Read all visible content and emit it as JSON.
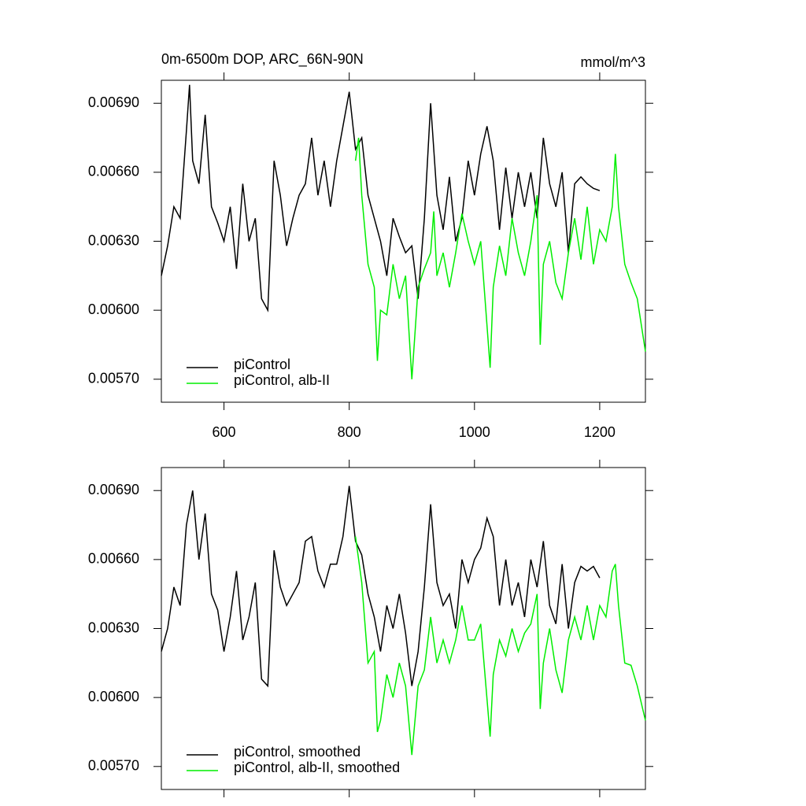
{
  "chart_data": [
    {
      "type": "line",
      "title": "0m-6500m DOP, ARC_66N-90N",
      "units": "mmol/m^3",
      "xlim": [
        500,
        1273
      ],
      "xticks": [
        600,
        800,
        1000,
        1200
      ],
      "xticklabels": true,
      "ylim": [
        0.0056,
        0.007
      ],
      "yticks": [
        {
          "value": 0.0069,
          "label": "0.00690"
        },
        {
          "value": 0.0066,
          "label": "0.00660"
        },
        {
          "value": 0.0063,
          "label": "0.00630"
        },
        {
          "value": 0.006,
          "label": "0.00600"
        },
        {
          "value": 0.0057,
          "label": "0.00570"
        }
      ],
      "legend": "lower left",
      "series": [
        {
          "name": "piControl",
          "color": "#000000",
          "x": [
            500,
            510,
            520,
            530,
            540,
            545,
            550,
            560,
            570,
            580,
            590,
            600,
            610,
            620,
            630,
            640,
            650,
            660,
            670,
            680,
            690,
            700,
            710,
            720,
            730,
            740,
            750,
            760,
            770,
            780,
            790,
            800,
            810,
            820,
            830,
            840,
            850,
            860,
            870,
            880,
            890,
            900,
            910,
            920,
            930,
            940,
            950,
            960,
            970,
            980,
            990,
            1000,
            1010,
            1020,
            1030,
            1040,
            1050,
            1060,
            1070,
            1080,
            1090,
            1100,
            1110,
            1120,
            1130,
            1140,
            1150,
            1160,
            1170,
            1180,
            1190,
            1200
          ],
          "values": [
            0.00615,
            0.00628,
            0.00645,
            0.0064,
            0.00678,
            0.00698,
            0.00665,
            0.00655,
            0.00685,
            0.00645,
            0.00638,
            0.0063,
            0.00645,
            0.00618,
            0.00655,
            0.0063,
            0.0064,
            0.00605,
            0.006,
            0.00665,
            0.0065,
            0.00628,
            0.0064,
            0.0065,
            0.00655,
            0.00675,
            0.0065,
            0.00665,
            0.00645,
            0.00665,
            0.0068,
            0.00695,
            0.0067,
            0.00675,
            0.0065,
            0.0064,
            0.0063,
            0.00615,
            0.0064,
            0.00632,
            0.00625,
            0.00628,
            0.00605,
            0.0064,
            0.0069,
            0.0065,
            0.00635,
            0.00658,
            0.0063,
            0.0064,
            0.00665,
            0.0065,
            0.00668,
            0.0068,
            0.00665,
            0.00635,
            0.00662,
            0.0064,
            0.0066,
            0.00645,
            0.0066,
            0.0064,
            0.00675,
            0.00655,
            0.00645,
            0.0066,
            0.00625,
            0.00655,
            0.00658,
            0.00655,
            0.00653,
            0.00652
          ]
        },
        {
          "name": "piControl, alb-II",
          "color": "#00ee00",
          "x": [
            810,
            815,
            820,
            830,
            840,
            845,
            850,
            860,
            870,
            880,
            890,
            900,
            910,
            920,
            930,
            935,
            940,
            950,
            960,
            970,
            980,
            990,
            1000,
            1010,
            1025,
            1030,
            1040,
            1050,
            1060,
            1070,
            1080,
            1090,
            1100,
            1105,
            1110,
            1120,
            1130,
            1140,
            1150,
            1160,
            1170,
            1180,
            1190,
            1200,
            1210,
            1220,
            1225,
            1230,
            1240,
            1250,
            1260,
            1273
          ],
          "values": [
            0.00665,
            0.00675,
            0.0065,
            0.0062,
            0.0061,
            0.00578,
            0.006,
            0.00598,
            0.0062,
            0.00605,
            0.00615,
            0.0057,
            0.0061,
            0.00618,
            0.00625,
            0.00643,
            0.00615,
            0.00625,
            0.0061,
            0.00625,
            0.00642,
            0.0063,
            0.0062,
            0.0063,
            0.00575,
            0.0061,
            0.00628,
            0.00615,
            0.0064,
            0.00625,
            0.00615,
            0.0063,
            0.0065,
            0.00585,
            0.0062,
            0.0063,
            0.00612,
            0.00605,
            0.00625,
            0.0064,
            0.00622,
            0.00645,
            0.0062,
            0.00635,
            0.0063,
            0.00645,
            0.00668,
            0.00645,
            0.0062,
            0.00612,
            0.00605,
            0.00582
          ]
        }
      ]
    },
    {
      "type": "line",
      "xlim": [
        500,
        1273
      ],
      "xticks": [
        600,
        800,
        1000,
        1200
      ],
      "xticklabels": false,
      "ylim": [
        0.0056,
        0.007
      ],
      "yticks": [
        {
          "value": 0.0069,
          "label": "0.00690"
        },
        {
          "value": 0.0066,
          "label": "0.00660"
        },
        {
          "value": 0.0063,
          "label": "0.00630"
        },
        {
          "value": 0.006,
          "label": "0.00600"
        },
        {
          "value": 0.0057,
          "label": "0.00570"
        }
      ],
      "legend": "lower left",
      "series": [
        {
          "name": "piControl, smoothed",
          "color": "#000000",
          "x": [
            500,
            510,
            520,
            530,
            540,
            550,
            560,
            570,
            580,
            590,
            600,
            610,
            620,
            630,
            640,
            650,
            660,
            670,
            680,
            690,
            700,
            710,
            720,
            730,
            740,
            750,
            760,
            770,
            780,
            790,
            800,
            810,
            820,
            830,
            840,
            850,
            860,
            870,
            880,
            890,
            900,
            910,
            920,
            930,
            940,
            950,
            960,
            970,
            980,
            990,
            1000,
            1010,
            1020,
            1030,
            1040,
            1050,
            1060,
            1070,
            1080,
            1090,
            1100,
            1110,
            1120,
            1130,
            1140,
            1150,
            1160,
            1170,
            1180,
            1190,
            1200
          ],
          "values": [
            0.0062,
            0.0063,
            0.00648,
            0.0064,
            0.00675,
            0.0069,
            0.0066,
            0.0068,
            0.00645,
            0.00638,
            0.0062,
            0.00635,
            0.00655,
            0.00625,
            0.00635,
            0.0065,
            0.00608,
            0.00605,
            0.00664,
            0.00648,
            0.0064,
            0.00645,
            0.0065,
            0.00668,
            0.0067,
            0.00655,
            0.00648,
            0.00658,
            0.00658,
            0.0067,
            0.00692,
            0.00668,
            0.00662,
            0.00645,
            0.00635,
            0.0062,
            0.0064,
            0.0063,
            0.00645,
            0.00628,
            0.00605,
            0.0062,
            0.00648,
            0.00684,
            0.0065,
            0.0064,
            0.00645,
            0.0063,
            0.0066,
            0.0065,
            0.0066,
            0.00665,
            0.00678,
            0.0067,
            0.0064,
            0.0066,
            0.0064,
            0.0065,
            0.00635,
            0.0066,
            0.00648,
            0.00668,
            0.0064,
            0.00632,
            0.00658,
            0.0063,
            0.0065,
            0.00657,
            0.00655,
            0.00657,
            0.00652
          ]
        },
        {
          "name": "piControl, alb-II, smoothed",
          "color": "#00ee00",
          "x": [
            810,
            820,
            830,
            840,
            845,
            850,
            860,
            870,
            880,
            890,
            900,
            910,
            920,
            930,
            940,
            950,
            960,
            970,
            980,
            990,
            1000,
            1010,
            1025,
            1030,
            1040,
            1050,
            1060,
            1070,
            1080,
            1090,
            1100,
            1105,
            1110,
            1120,
            1130,
            1140,
            1150,
            1160,
            1170,
            1180,
            1190,
            1200,
            1210,
            1220,
            1225,
            1230,
            1240,
            1250,
            1260,
            1273
          ],
          "values": [
            0.0067,
            0.0065,
            0.00615,
            0.0062,
            0.00585,
            0.0059,
            0.0061,
            0.006,
            0.00615,
            0.00605,
            0.00575,
            0.00605,
            0.00612,
            0.00635,
            0.00615,
            0.00625,
            0.00615,
            0.00625,
            0.0064,
            0.00625,
            0.00625,
            0.00632,
            0.00583,
            0.0061,
            0.00625,
            0.00618,
            0.0063,
            0.0062,
            0.00628,
            0.00632,
            0.00645,
            0.00595,
            0.00615,
            0.0063,
            0.00612,
            0.00602,
            0.00625,
            0.00635,
            0.00625,
            0.0064,
            0.00625,
            0.0064,
            0.00635,
            0.00655,
            0.00658,
            0.0064,
            0.00615,
            0.00614,
            0.00605,
            0.0059
          ]
        }
      ]
    }
  ]
}
